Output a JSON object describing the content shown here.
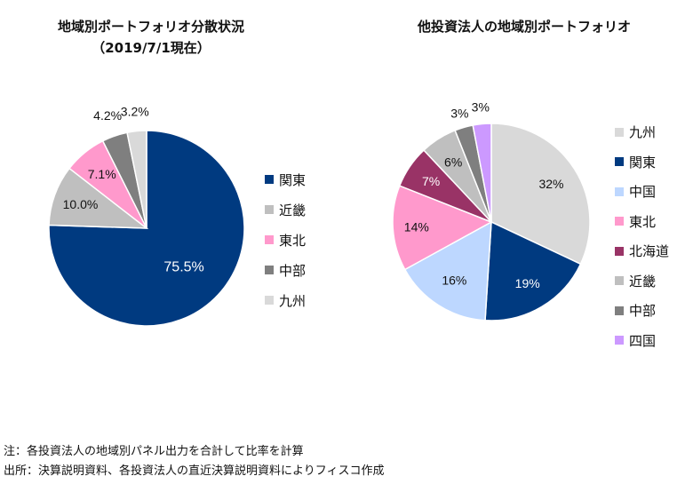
{
  "chart_data": [
    {
      "type": "pie",
      "title": "地域別ポートフォリオ分散状況",
      "subtitle": "（2019/7/1現在）",
      "categories": [
        "関東",
        "近畿",
        "東北",
        "中部",
        "九州"
      ],
      "values": [
        75.5,
        10.0,
        7.1,
        4.2,
        3.2
      ],
      "labels": [
        "75.5%",
        "10.0%",
        "7.1%",
        "4.2%",
        "3.2%"
      ],
      "colors": [
        "#003A80",
        "#BFBFBF",
        "#FF99CC",
        "#7F7F7F",
        "#D9D9D9"
      ],
      "label_colors": [
        "#ffffff",
        "#111111",
        "#111111",
        "#111111",
        "#111111"
      ],
      "start": "12 o'clock, clockwise",
      "legend": "right"
    },
    {
      "type": "pie",
      "title": "他投資法人の地域別ポートフォリオ",
      "categories": [
        "九州",
        "関東",
        "中国",
        "東北",
        "北海道",
        "近畿",
        "中部",
        "四国"
      ],
      "values": [
        32,
        19,
        16,
        14,
        7,
        6,
        3,
        3
      ],
      "labels": [
        "32%",
        "19%",
        "16%",
        "14%",
        "7%",
        "6%",
        "3%",
        "3%"
      ],
      "colors": [
        "#D9D9D9",
        "#003A80",
        "#BDD7FF",
        "#FF99CC",
        "#993366",
        "#BFBFBF",
        "#7F7F7F",
        "#CC99FF"
      ],
      "label_colors": [
        "#111111",
        "#ffffff",
        "#111111",
        "#111111",
        "#ffffff",
        "#111111",
        "#111111",
        "#111111"
      ],
      "start": "12 o'clock, clockwise",
      "legend": "right"
    }
  ],
  "notes": [
    "注：各投資法人の地域別パネル出力を合計して比率を計算",
    "出所：決算説明資料、各投資法人の直近決算説明資料によりフィスコ作成"
  ]
}
